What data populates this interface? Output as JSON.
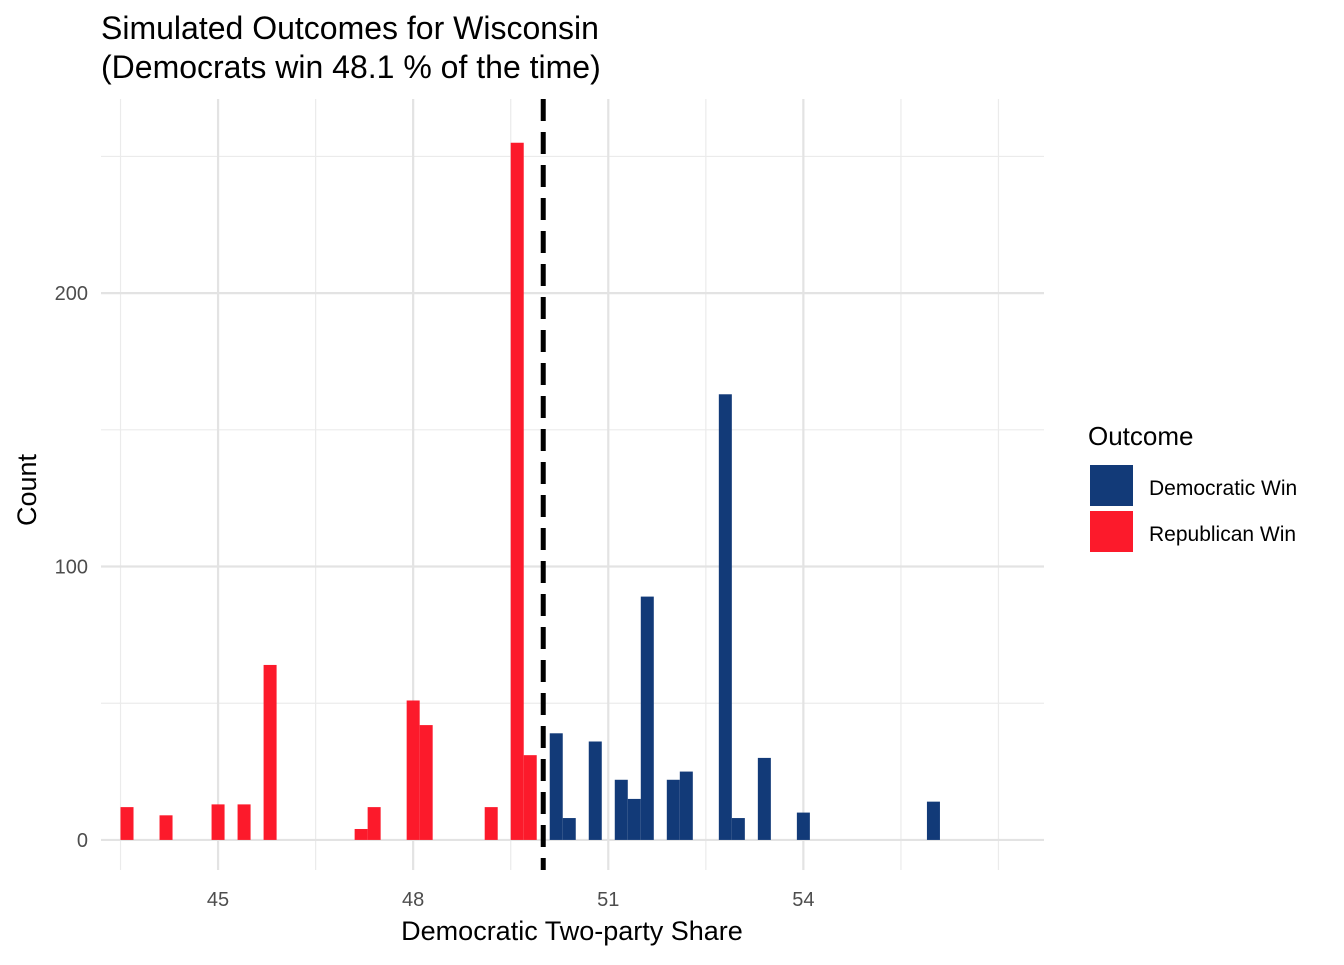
{
  "chart_data": {
    "type": "bar",
    "title": "Simulated Outcomes for Wisconsin",
    "subtitle": "(Democrats win 48.1 % of the time)",
    "xlabel": "Democratic Two-party Share",
    "ylabel": "Count",
    "xlim": [
      43.2,
      57.7
    ],
    "ylim": [
      -11,
      271
    ],
    "x_ticks": [
      45,
      48,
      51,
      54
    ],
    "y_ticks": [
      0,
      100,
      200
    ],
    "grid": true,
    "bin_width": 0.2,
    "reference_line": {
      "x": 50,
      "style": "dashed"
    },
    "legend": {
      "title": "Outcome",
      "position": "right",
      "entries": [
        {
          "label": "Democratic Win",
          "color": "#123a78"
        },
        {
          "label": "Republican Win",
          "color": "#fc1a2b"
        }
      ]
    },
    "series": [
      {
        "name": "Democratic Win",
        "color": "#123a78",
        "points": [
          {
            "x": 50.2,
            "y": 39
          },
          {
            "x": 50.4,
            "y": 8
          },
          {
            "x": 50.8,
            "y": 36
          },
          {
            "x": 51.2,
            "y": 22
          },
          {
            "x": 51.4,
            "y": 15
          },
          {
            "x": 51.6,
            "y": 89
          },
          {
            "x": 52.0,
            "y": 22
          },
          {
            "x": 52.2,
            "y": 25
          },
          {
            "x": 52.8,
            "y": 163
          },
          {
            "x": 53.0,
            "y": 8
          },
          {
            "x": 53.4,
            "y": 30
          },
          {
            "x": 54.0,
            "y": 10
          },
          {
            "x": 56.0,
            "y": 14
          }
        ]
      },
      {
        "name": "Republican Win",
        "color": "#fc1a2b",
        "points": [
          {
            "x": 43.6,
            "y": 12
          },
          {
            "x": 44.2,
            "y": 9
          },
          {
            "x": 45.0,
            "y": 13
          },
          {
            "x": 45.4,
            "y": 13
          },
          {
            "x": 45.8,
            "y": 64
          },
          {
            "x": 47.2,
            "y": 4
          },
          {
            "x": 47.4,
            "y": 12
          },
          {
            "x": 48.0,
            "y": 51
          },
          {
            "x": 48.2,
            "y": 42
          },
          {
            "x": 49.2,
            "y": 12
          },
          {
            "x": 49.6,
            "y": 255
          },
          {
            "x": 49.8,
            "y": 31
          }
        ]
      }
    ]
  }
}
